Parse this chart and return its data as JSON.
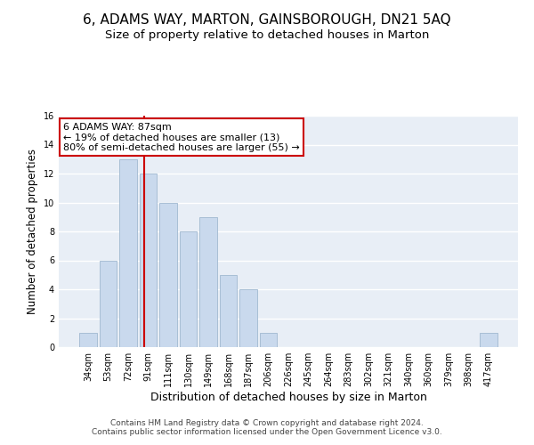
{
  "title": "6, ADAMS WAY, MARTON, GAINSBOROUGH, DN21 5AQ",
  "subtitle": "Size of property relative to detached houses in Marton",
  "xlabel": "Distribution of detached houses by size in Marton",
  "ylabel": "Number of detached properties",
  "bin_labels": [
    "34sqm",
    "53sqm",
    "72sqm",
    "91sqm",
    "111sqm",
    "130sqm",
    "149sqm",
    "168sqm",
    "187sqm",
    "206sqm",
    "226sqm",
    "245sqm",
    "264sqm",
    "283sqm",
    "302sqm",
    "321sqm",
    "340sqm",
    "360sqm",
    "379sqm",
    "398sqm",
    "417sqm"
  ],
  "bar_values": [
    1,
    6,
    13,
    12,
    10,
    8,
    9,
    5,
    4,
    1,
    0,
    0,
    0,
    0,
    0,
    0,
    0,
    0,
    0,
    0,
    1
  ],
  "bar_color": "#c9d9ed",
  "bar_edge_color": "#a0b8d0",
  "background_color": "#e8eef6",
  "grid_color": "#ffffff",
  "vline_color": "#cc0000",
  "annotation_text": "6 ADAMS WAY: 87sqm\n← 19% of detached houses are smaller (13)\n80% of semi-detached houses are larger (55) →",
  "annotation_box_color": "#cc0000",
  "ylim": [
    0,
    16
  ],
  "yticks": [
    0,
    2,
    4,
    6,
    8,
    10,
    12,
    14,
    16
  ],
  "footer": "Contains HM Land Registry data © Crown copyright and database right 2024.\nContains public sector information licensed under the Open Government Licence v3.0.",
  "title_fontsize": 11,
  "subtitle_fontsize": 9.5,
  "xlabel_fontsize": 9,
  "ylabel_fontsize": 8.5,
  "tick_fontsize": 7,
  "annotation_fontsize": 8,
  "footer_fontsize": 6.5
}
